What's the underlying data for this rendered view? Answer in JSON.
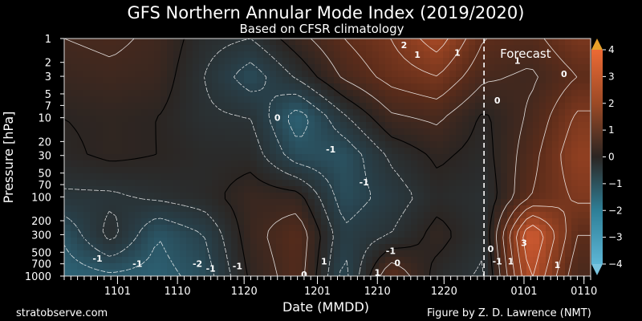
{
  "chart_data": {
    "type": "heatmap",
    "title": "GFS Northern Annular Mode Index (2019/2020)",
    "subtitle": "Based on CFSR climatology",
    "xlabel": "Date (MMDD)",
    "ylabel": "Pressure [hPa]",
    "x_dates": [
      "2019-10-24",
      "2019-10-31",
      "2019-11-07",
      "2019-11-14",
      "2019-11-21",
      "2019-11-28",
      "2019-12-05",
      "2019-12-12",
      "2019-12-19",
      "2019-12-26",
      "2020-01-02",
      "2020-01-09"
    ],
    "x_ticks": [
      {
        "date": "2019-11-01",
        "label": "1101"
      },
      {
        "date": "2019-11-10",
        "label": "1110"
      },
      {
        "date": "2019-11-20",
        "label": "1120"
      },
      {
        "date": "2019-12-01",
        "label": "1201"
      },
      {
        "date": "2019-12-10",
        "label": "1210"
      },
      {
        "date": "2019-12-20",
        "label": "1220"
      },
      {
        "date": "2020-01-01",
        "label": "0101"
      },
      {
        "date": "2020-01-10",
        "label": "0110"
      }
    ],
    "xlim": [
      "2019-10-24",
      "2020-01-11"
    ],
    "y_scale": "log",
    "ylim": [
      1000,
      1
    ],
    "y_ticks": [
      1,
      2,
      3,
      5,
      7,
      10,
      20,
      30,
      50,
      70,
      100,
      200,
      300,
      500,
      700,
      1000
    ],
    "y_levels": [
      1,
      3,
      10,
      30,
      100,
      300,
      1000
    ],
    "values": [
      [
        0.5,
        0.6,
        0.4,
        -0.3,
        -0.5,
        0.3,
        1.0,
        1.5,
        2.3,
        1.0,
        0.8,
        1.5
      ],
      [
        0.3,
        0.4,
        0.3,
        -0.5,
        -1.3,
        -0.4,
        0.6,
        1.2,
        1.5,
        0.6,
        0.4,
        1.0
      ],
      [
        0.0,
        0.1,
        0.0,
        -0.4,
        -0.5,
        -1.8,
        -0.6,
        0.4,
        0.6,
        -0.1,
        0.6,
        1.6
      ],
      [
        -0.1,
        0.1,
        0.0,
        -0.2,
        -0.2,
        -1.3,
        -1.4,
        -0.4,
        0.1,
        -0.2,
        0.8,
        1.9
      ],
      [
        -0.6,
        -0.6,
        -0.4,
        -0.2,
        0.3,
        0.2,
        -1.3,
        -0.8,
        -0.2,
        -0.4,
        1.0,
        1.6
      ],
      [
        -1.4,
        -0.3,
        -1.5,
        -1.0,
        0.3,
        0.9,
        -0.9,
        -0.5,
        0.2,
        -0.4,
        3.1,
        1.0
      ],
      [
        -1.8,
        -1.6,
        -1.7,
        -1.3,
        0.1,
        0.8,
        -1.2,
        1.0,
        -0.2,
        -0.6,
        2.6,
        0.6
      ]
    ],
    "colorbar": {
      "min": -4,
      "max": 4,
      "ticks": [
        -4,
        -3,
        -2,
        -1,
        0,
        1,
        2,
        3,
        4
      ]
    },
    "contour_labels": [
      {
        "text": "1",
        "date": "2019-12-16",
        "p": 1.6
      },
      {
        "text": "2",
        "date": "2019-12-14",
        "p": 1.2
      },
      {
        "text": "1",
        "date": "2019-12-22",
        "p": 1.5
      },
      {
        "text": "1",
        "date": "2019-12-31",
        "p": 1.9
      },
      {
        "text": "0",
        "date": "2020-01-07",
        "p": 2.8
      },
      {
        "text": "0",
        "date": "2019-12-28",
        "p": 6
      },
      {
        "text": "0",
        "date": "2019-11-25",
        "p": 10
      },
      {
        "text": "-1",
        "date": "2019-12-03",
        "p": 25
      },
      {
        "text": "-1",
        "date": "2019-12-08",
        "p": 65
      },
      {
        "text": "-1",
        "date": "2019-12-12",
        "p": 480
      },
      {
        "text": "0",
        "date": "2019-12-13",
        "p": 680
      },
      {
        "text": "-1",
        "date": "2019-10-29",
        "p": 600
      },
      {
        "text": "-1",
        "date": "2019-11-04",
        "p": 700
      },
      {
        "text": "-2",
        "date": "2019-11-13",
        "p": 700
      },
      {
        "text": "-1",
        "date": "2019-11-15",
        "p": 800
      },
      {
        "text": "-1",
        "date": "2019-11-19",
        "p": 750
      },
      {
        "text": "0",
        "date": "2019-11-29",
        "p": 950
      },
      {
        "text": "1",
        "date": "2019-12-02",
        "p": 650
      },
      {
        "text": "1",
        "date": "2019-12-10",
        "p": 900
      },
      {
        "text": "0",
        "date": "2019-12-27",
        "p": 450
      },
      {
        "text": "-1",
        "date": "2019-12-28",
        "p": 650
      },
      {
        "text": "1",
        "date": "2019-12-30",
        "p": 650
      },
      {
        "text": "3",
        "date": "2020-01-01",
        "p": 380
      },
      {
        "text": "1",
        "date": "2020-01-06",
        "p": 720
      }
    ],
    "forecast_start": "2019-12-26",
    "forecast_label": "Forecast"
  },
  "footer": {
    "left": "stratobserve.com",
    "right": "Figure by Z. D. Lawrence (NMT)"
  },
  "colors": {
    "background": "#000000",
    "negative_extreme": "#7fb7d3",
    "neutral": "#2a2522",
    "positive_extreme": "#e8673c",
    "colorbar_top": "#e9a02a",
    "colorbar_bottom": "#79c4df"
  }
}
